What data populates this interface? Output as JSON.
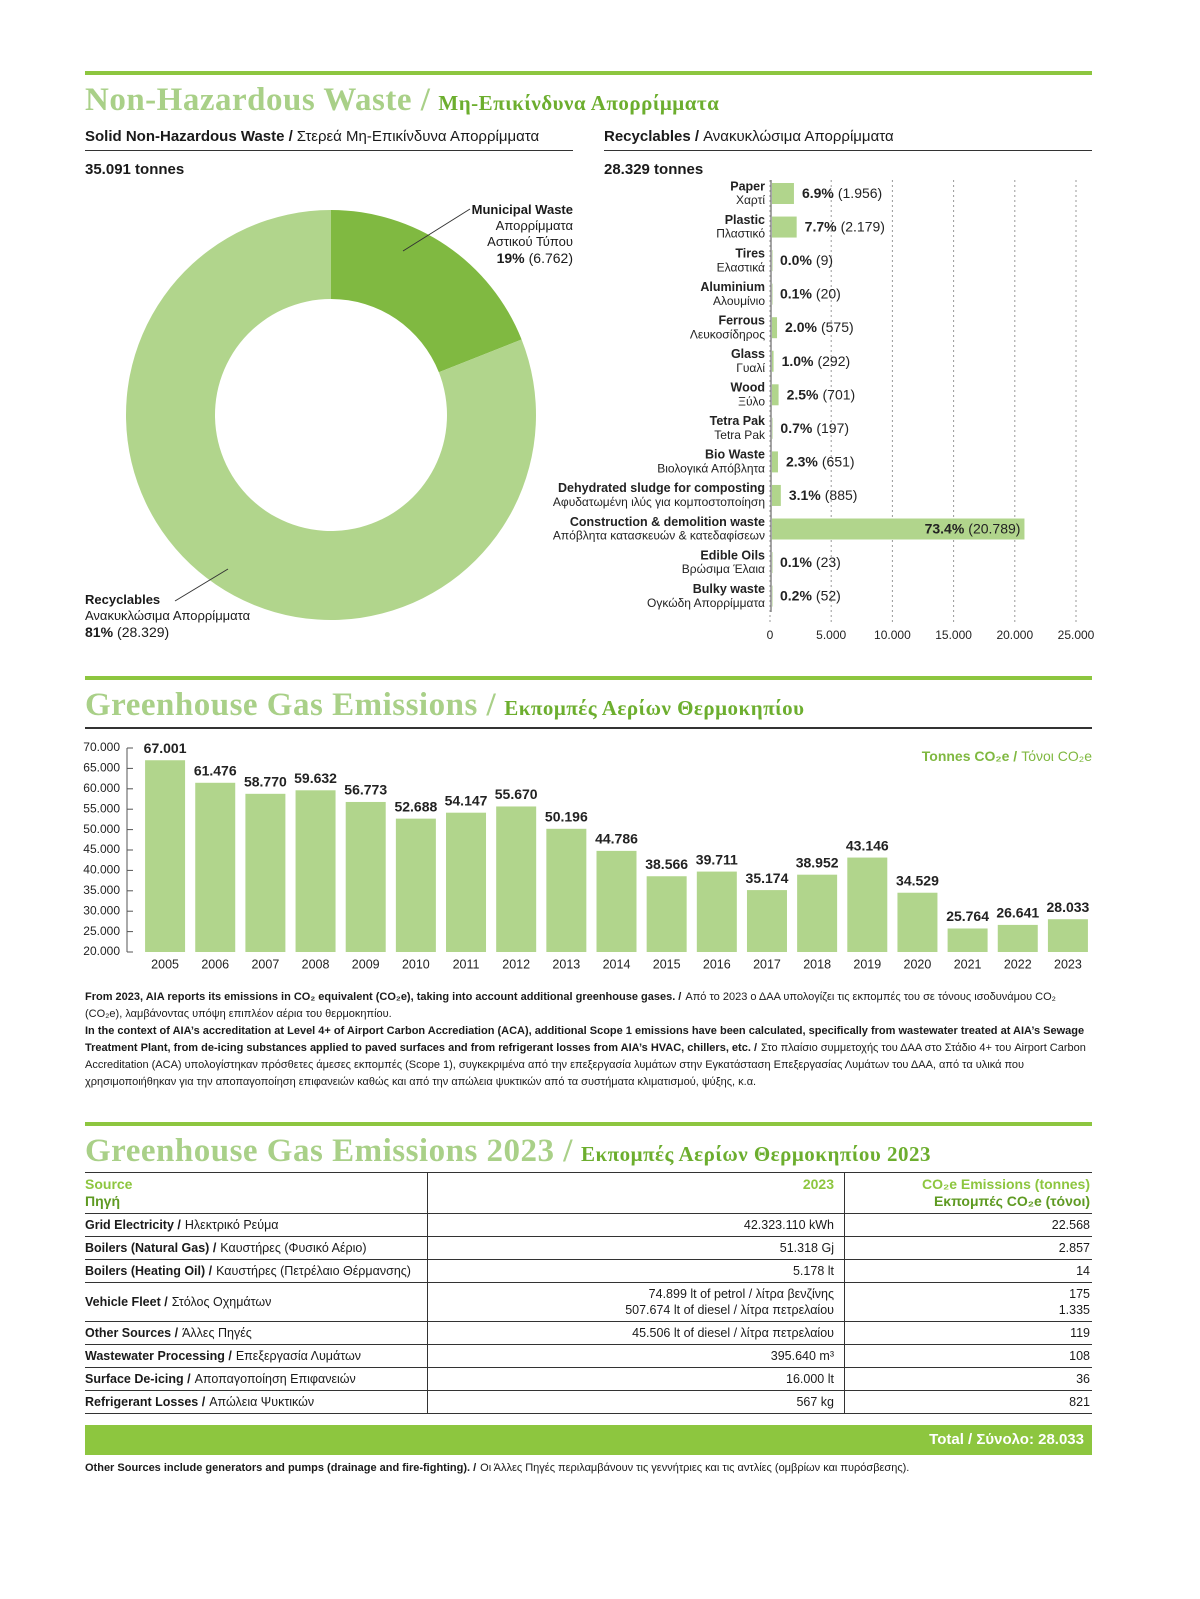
{
  "section1": {
    "title": "Non-Hazardous Waste /",
    "title_gr": "Μη-Επικίνδυνα Απορρίμματα"
  },
  "solid": {
    "label": "Solid Non-Hazardous Waste /",
    "label_gr": "Στερεά Μη-Επικίνδυνα Απορρίμματα",
    "total": "35.091 tonnes"
  },
  "recyclables": {
    "label": "Recyclables /",
    "label_gr": "Ανακυκλώσιμα Απορρίμματα",
    "total": "28.329 tonnes"
  },
  "chart_data": [
    {
      "type": "donut",
      "categories": [
        "Municipal Waste",
        "Recyclables"
      ],
      "categories_gr": [
        "Απορρίμματα Αστικού Τύπου",
        "Ανακυκλώσιμα Απορρίμματα"
      ],
      "values": [
        19,
        81
      ],
      "value_labels": [
        "19%",
        "81%"
      ],
      "amounts": [
        "(6.762)",
        "(28.329)"
      ],
      "colors": [
        "#80b941",
        "#b1d58c"
      ]
    },
    {
      "type": "hbar",
      "categories": [
        "Paper",
        "Plastic",
        "Tires",
        "Aluminium",
        "Ferrous",
        "Glass",
        "Wood",
        "Tetra Pak",
        "Bio Waste",
        "Dehydrated sludge for composting",
        "Construction & demolition waste",
        "Edible Oils",
        "Bulky waste"
      ],
      "categories_gr": [
        "Χαρτί",
        "Πλαστικό",
        "Ελαστικά",
        "Αλουμίνιο",
        "Λευκοσίδηρος",
        "Γυαλί",
        "Ξύλο",
        "Tetra Pak",
        "Βιολογικά Απόβλητα",
        "Αφυδατωμένη ιλύς για κομποστοποίηση",
        "Απόβλητα κατασκευών & κατεδαφίσεων",
        "Βρώσιμα Έλαια",
        "Ογκώδη Απορρίμματα"
      ],
      "values": [
        1956,
        2179,
        9,
        20,
        575,
        292,
        701,
        197,
        651,
        885,
        20789,
        23,
        52
      ],
      "value_labels": [
        "(1.956)",
        "(2.179)",
        "(9)",
        "(20)",
        "(575)",
        "(292)",
        "(701)",
        "(197)",
        "(651)",
        "(885)",
        "(20.789)",
        "(23)",
        "(52)"
      ],
      "shares": [
        "6.9%",
        "7.7%",
        "0.0%",
        "0.1%",
        "2.0%",
        "1.0%",
        "2.5%",
        "0.7%",
        "2.3%",
        "3.1%",
        "73.4%",
        "0.1%",
        "0.2%"
      ],
      "color": "#b1d58c",
      "xlim": [
        0,
        25000
      ],
      "xticks": [
        0,
        {
          "value": 5000,
          "label": "5.000"
        },
        {
          "value": 10000,
          "label": "10.000"
        },
        {
          "value": 15000,
          "label": "15.000"
        },
        {
          "value": 20000,
          "label": "20.000"
        },
        {
          "value": 25000,
          "label": "25.000"
        }
      ],
      "grid": true
    },
    {
      "type": "bar",
      "unit": "Tonnes CO₂e /",
      "unit_gr": "Τόνοι CO₂e",
      "categories": [
        "2005",
        "2006",
        "2007",
        "2008",
        "2009",
        "2010",
        "2011",
        "2012",
        "2013",
        "2014",
        "2015",
        "2016",
        "2017",
        "2018",
        "2019",
        "2020",
        "2021",
        "2022",
        "2023"
      ],
      "values": [
        67001,
        61476,
        58770,
        59632,
        56773,
        52688,
        54147,
        55670,
        50196,
        44786,
        38566,
        39711,
        35174,
        38952,
        43146,
        34529,
        25764,
        26641,
        28033
      ],
      "value_labels": [
        "67.001",
        "61.476",
        "58.770",
        "59.632",
        "56.773",
        "52.688",
        "54.147",
        "55.670",
        "50.196",
        "44.786",
        "38.566",
        "39.711",
        "35.174",
        "38.952",
        "43.146",
        "34.529",
        "25.764",
        "26.641",
        "28.033"
      ],
      "color": "#b1d58c",
      "ylim": [
        20000,
        70000
      ],
      "yticks": [
        {
          "value": 20000,
          "label": "20.000"
        },
        {
          "value": 25000,
          "label": "25.000"
        },
        {
          "value": 30000,
          "label": "30.000"
        },
        {
          "value": 35000,
          "label": "35.000"
        },
        {
          "value": 40000,
          "label": "40.000"
        },
        {
          "value": 45000,
          "label": "45.000"
        },
        {
          "value": 50000,
          "label": "50.000"
        },
        {
          "value": 55000,
          "label": "55.000"
        },
        {
          "value": 60000,
          "label": "60.000"
        },
        {
          "value": 65000,
          "label": "65.000"
        },
        {
          "value": 70000,
          "label": "70.000"
        }
      ]
    }
  ],
  "section2": {
    "title": "Greenhouse Gas Emissions /",
    "title_gr": "Εκπομπές Αερίων Θερμοκηπίου"
  },
  "notes": [
    [
      "From 2023, AIA reports its emissions in CO₂ equivalent (CO₂e), taking into account additional greenhouse gases. /",
      "Από το 2023 ο ΔΑΑ υπολογίζει τις εκπομπές του σε τόνους ισοδυνάμου CO₂ (CO₂e), λαμβάνοντας υπόψη επιπλέον αέρια του θερμοκηπίου."
    ],
    [
      "In the context of AIA’s accreditation at Level 4+ of Airport Carbon Accrediation (ACA), additional Scope 1 emissions have been calculated, specifically from wastewater treated at AIA’s Sewage Treatment Plant, from de-icing substances applied to paved surfaces and from refrigerant losses from AIA’s HVAC, chillers, etc. /",
      "Στο πλαίσιο συμμετοχής του ΔΑΑ στο Στάδιο 4+ του Airport Carbon Accreditation (ACA) υπολογίστηκαν πρόσθετες άμεσες εκπομπές (Scope 1), συγκεκριμένα από την επεξεργασία λυμάτων στην Εγκατάσταση Επεξεργασίας Λυμάτων του ΔΑΑ, από τα υλικά που χρησιμοποιήθηκαν για την αποπαγοποίηση επιφανειών καθώς και από την απώλεια ψυκτικών από τα συστήματα κλιματισμού, ψύξης, κ.α."
    ]
  ],
  "section3": {
    "title": "Greenhouse Gas Emissions 2023 /",
    "title_gr": "Εκπομπές Αερίων Θερμοκηπίου 2023"
  },
  "table": {
    "header": [
      [
        "Source",
        "Πηγή"
      ],
      [
        "2023"
      ],
      [
        "CO₂e Emissions (tonnes)",
        "Εκπομπές CO₂e (τόνοι)"
      ]
    ],
    "rows": [
      {
        "source": "Grid Electricity /",
        "source_gr": "Ηλεκτρικό Ρεύμα",
        "usage": [
          "42.323.110 kWh"
        ],
        "emissions": [
          "22.568"
        ]
      },
      {
        "source": "Boilers (Natural Gas) /",
        "source_gr": "Καυστήρες (Φυσικό Αέριο)",
        "usage": [
          "51.318 Gj"
        ],
        "emissions": [
          "2.857"
        ]
      },
      {
        "source": "Boilers (Heating Oil) /",
        "source_gr": "Καυστήρες (Πετρέλαιο Θέρμανσης)",
        "usage": [
          "5.178 lt"
        ],
        "emissions": [
          "14"
        ]
      },
      {
        "source": "Vehicle Fleet /",
        "source_gr": "Στόλος Οχημάτων",
        "usage": [
          "74.899 lt of petrol / λίτρα βενζίνης",
          "507.674 lt of diesel / λίτρα πετρελαίου"
        ],
        "emissions": [
          "175",
          "1.335"
        ]
      },
      {
        "source": "Other Sources /",
        "source_gr": "Άλλες Πηγές",
        "usage": [
          "45.506 lt of diesel / λίτρα πετρελαίου"
        ],
        "emissions": [
          "119"
        ]
      },
      {
        "source": "Wastewater Processing /",
        "source_gr": "Επεξεργασία Λυμάτων",
        "usage": [
          "395.640 m³"
        ],
        "emissions": [
          "108"
        ]
      },
      {
        "source": "Surface De-icing /",
        "source_gr": "Αποπαγοποίηση Επιφανειών",
        "usage": [
          "16.000 lt"
        ],
        "emissions": [
          "36"
        ]
      },
      {
        "source": "Refrigerant Losses /",
        "source_gr": "Απώλεια Ψυκτικών",
        "usage": [
          "567 kg"
        ],
        "emissions": [
          "821"
        ]
      }
    ],
    "total": "Total / Σύνολο: 28.033",
    "footnote": [
      "Other Sources include generators and pumps (drainage and fire-fighting). /",
      "Οι Άλλες Πηγές περιλαμβάνουν τις γεννήτριες και τις αντλίες (ομβρίων και πυρόσβεσης)."
    ]
  }
}
